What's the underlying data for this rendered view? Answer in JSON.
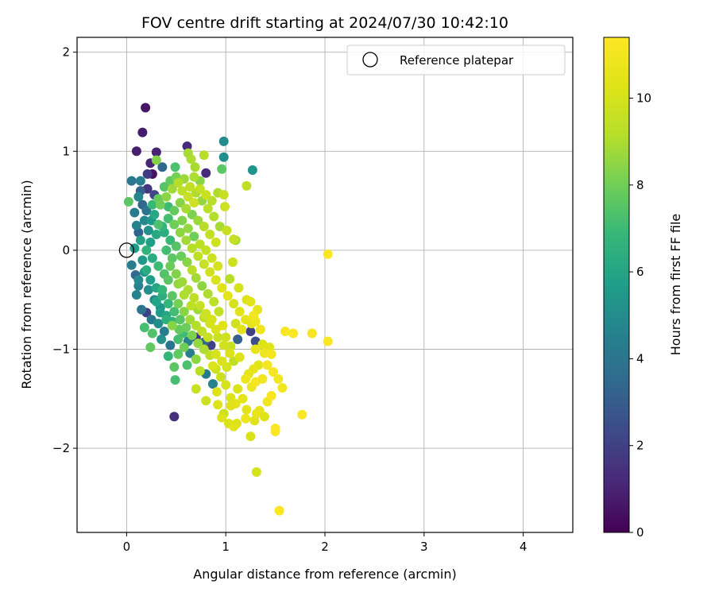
{
  "chart_data": {
    "type": "scatter",
    "title": "FOV centre drift starting at 2024/07/30 10:42:10",
    "xlabel": "Angular distance from reference (arcmin)",
    "ylabel": "Rotation from reference (arcmin)",
    "xlim": [
      -0.5,
      4.5
    ],
    "ylim": [
      -2.85,
      2.15
    ],
    "xticks": [
      0,
      1,
      2,
      3,
      4
    ],
    "xtick_labels": [
      "0",
      "1",
      "2",
      "3",
      "4"
    ],
    "yticks": [
      -2,
      -1,
      0,
      1,
      2
    ],
    "ytick_labels": [
      "−2",
      "−1",
      "0",
      "1",
      "2"
    ],
    "grid": true,
    "legend": {
      "position": "top-right",
      "entries": [
        {
          "label": "Reference platepar",
          "marker": "open-circle",
          "color": "#000000"
        }
      ]
    },
    "reference_point": {
      "x": 0,
      "y": 0
    },
    "colorbar": {
      "label": "Hours from first FF file",
      "range": [
        0,
        11.4
      ],
      "ticks": [
        0,
        2,
        4,
        6,
        8,
        10
      ],
      "tick_labels": [
        "0",
        "2",
        "4",
        "6",
        "8",
        "10"
      ],
      "colormap": "viridis"
    },
    "points": [
      [
        0.19,
        1.44,
        0.6
      ],
      [
        0.16,
        1.19,
        0.8
      ],
      [
        0.1,
        1.0,
        0.9
      ],
      [
        0.3,
        0.99,
        1.0
      ],
      [
        0.61,
        1.05,
        1.2
      ],
      [
        0.98,
        1.1,
        5.0
      ],
      [
        1.27,
        0.81,
        5.3
      ],
      [
        0.98,
        0.94,
        5.1
      ],
      [
        0.3,
        0.91,
        8.3
      ],
      [
        0.62,
        0.98,
        8.9
      ],
      [
        0.78,
        0.96,
        9.2
      ],
      [
        0.65,
        0.92,
        9.0
      ],
      [
        0.96,
        0.82,
        7.6
      ],
      [
        1.21,
        0.65,
        9.4
      ],
      [
        0.24,
        0.88,
        1.1
      ],
      [
        0.26,
        0.77,
        0.5
      ],
      [
        0.21,
        0.77,
        1.8
      ],
      [
        0.36,
        0.84,
        3.4
      ],
      [
        0.49,
        0.84,
        7.3
      ],
      [
        0.8,
        0.78,
        1.2
      ],
      [
        0.69,
        0.84,
        8.9
      ],
      [
        0.05,
        0.7,
        4.0
      ],
      [
        0.14,
        0.7,
        4.4
      ],
      [
        0.14,
        0.6,
        3.1
      ],
      [
        0.21,
        0.62,
        1.6
      ],
      [
        0.28,
        0.56,
        2.2
      ],
      [
        0.02,
        0.49,
        7.6
      ],
      [
        0.12,
        0.54,
        4.7
      ],
      [
        0.16,
        0.46,
        3.4
      ],
      [
        0.98,
        0.56,
        9.6
      ],
      [
        0.99,
        0.44,
        9.8
      ],
      [
        0.08,
        0.38,
        4.2
      ],
      [
        0.1,
        0.25,
        4.6
      ],
      [
        0.12,
        0.18,
        3.3
      ],
      [
        0.2,
        0.4,
        4.0
      ],
      [
        0.25,
        0.3,
        5.5
      ],
      [
        0.14,
        0.1,
        5.9
      ],
      [
        0.08,
        0.02,
        5.6
      ],
      [
        0.05,
        -0.15,
        4.4
      ],
      [
        0.09,
        -0.25,
        3.5
      ],
      [
        0.12,
        -0.3,
        4.9
      ],
      [
        0.2,
        -0.2,
        6.4
      ],
      [
        0.1,
        -0.45,
        4.6
      ],
      [
        0.15,
        -0.6,
        3.9
      ],
      [
        0.2,
        -0.63,
        2.0
      ],
      [
        0.18,
        -0.78,
        7.2
      ],
      [
        0.25,
        -0.7,
        4.1
      ],
      [
        0.24,
        -0.98,
        7.7
      ],
      [
        0.35,
        -0.9,
        5.2
      ],
      [
        0.42,
        -1.07,
        6.8
      ],
      [
        0.52,
        -1.05,
        7.7
      ],
      [
        0.48,
        -1.18,
        7.6
      ],
      [
        0.61,
        -1.16,
        7.3
      ],
      [
        0.49,
        -1.31,
        7.2
      ],
      [
        0.48,
        -1.68,
        1.4
      ],
      [
        0.7,
        -1.4,
        9.6
      ],
      [
        0.8,
        -1.25,
        4.1
      ],
      [
        0.87,
        -1.35,
        4.6
      ],
      [
        1.04,
        -0.29,
        9.2
      ],
      [
        1.07,
        -0.12,
        9.8
      ],
      [
        1.08,
        0.11,
        9.5
      ],
      [
        1.13,
        -0.38,
        10.0
      ],
      [
        1.21,
        -0.5,
        10.1
      ],
      [
        1.25,
        -0.52,
        10.4
      ],
      [
        1.32,
        -0.6,
        10.6
      ],
      [
        1.28,
        -0.66,
        10.9
      ],
      [
        1.26,
        -0.74,
        10.4
      ],
      [
        1.3,
        -0.72,
        10.7
      ],
      [
        1.35,
        -0.8,
        10.9
      ],
      [
        1.25,
        -0.82,
        2.0
      ],
      [
        1.3,
        -0.92,
        2.4
      ],
      [
        1.37,
        -0.95,
        10.2
      ],
      [
        1.44,
        -0.98,
        10.4
      ],
      [
        1.39,
        -1.04,
        10.8
      ],
      [
        1.46,
        -1.05,
        11.0
      ],
      [
        1.3,
        -1.0,
        10.6
      ],
      [
        1.42,
        -1.16,
        11.1
      ],
      [
        1.48,
        -1.23,
        11.1
      ],
      [
        1.53,
        -1.3,
        11.0
      ],
      [
        1.57,
        -1.39,
        11.0
      ],
      [
        1.46,
        -1.47,
        11.2
      ],
      [
        1.42,
        -1.53,
        10.9
      ],
      [
        1.5,
        -1.8,
        11.3
      ],
      [
        1.5,
        -1.83,
        11.3
      ],
      [
        1.25,
        -1.88,
        10.1
      ],
      [
        1.29,
        -1.72,
        10.3
      ],
      [
        1.31,
        -1.65,
        10.6
      ],
      [
        1.34,
        -1.62,
        10.4
      ],
      [
        1.39,
        -1.68,
        10.2
      ],
      [
        1.21,
        -1.61,
        10.4
      ],
      [
        1.2,
        -1.7,
        10.7
      ],
      [
        1.11,
        -1.75,
        10.2
      ],
      [
        1.08,
        -1.78,
        10.4
      ],
      [
        1.03,
        -1.75,
        10.1
      ],
      [
        0.98,
        -1.65,
        9.7
      ],
      [
        0.96,
        -1.69,
        10.2
      ],
      [
        0.92,
        -1.56,
        10.2
      ],
      [
        1.05,
        -1.57,
        10.3
      ],
      [
        1.1,
        -1.55,
        10.4
      ],
      [
        1.17,
        -1.5,
        10.5
      ],
      [
        1.05,
        -1.49,
        10.2
      ],
      [
        1.12,
        -1.4,
        10.1
      ],
      [
        1.2,
        -1.3,
        10.8
      ],
      [
        1.26,
        -1.38,
        10.7
      ],
      [
        1.23,
        -1.25,
        10.5
      ],
      [
        1.28,
        -1.2,
        10.6
      ],
      [
        1.33,
        -1.16,
        10.4
      ],
      [
        1.37,
        -1.3,
        10.9
      ],
      [
        1.3,
        -1.33,
        11.1
      ],
      [
        1.31,
        -2.24,
        10.0
      ],
      [
        1.54,
        -2.63,
        11.3
      ],
      [
        1.77,
        -1.66,
        11.3
      ],
      [
        1.6,
        -0.82,
        11.2
      ],
      [
        1.68,
        -0.84,
        11.3
      ],
      [
        1.87,
        -0.84,
        11.2
      ],
      [
        2.03,
        -0.92,
        11.3
      ],
      [
        2.03,
        -0.04,
        11.3
      ],
      [
        0.8,
        -1.52,
        9.8
      ],
      [
        0.7,
        -1.1,
        8.5
      ],
      [
        0.74,
        -1.22,
        9.2
      ],
      [
        0.91,
        -1.43,
        10.2
      ],
      [
        1.0,
        -1.36,
        10.0
      ],
      [
        0.95,
        -1.28,
        9.7
      ],
      [
        0.87,
        -1.17,
        10.2
      ],
      [
        0.9,
        -1.05,
        10.0
      ],
      [
        0.85,
        -0.96,
        2.0
      ],
      [
        0.78,
        -0.93,
        3.6
      ],
      [
        0.7,
        -0.88,
        1.5
      ],
      [
        0.62,
        -0.92,
        4.5
      ],
      [
        0.57,
        -0.84,
        7.0
      ],
      [
        0.53,
        -0.8,
        7.8
      ],
      [
        0.46,
        -0.76,
        8.4
      ],
      [
        0.4,
        -0.7,
        6.5
      ],
      [
        0.34,
        -0.63,
        5.6
      ],
      [
        0.3,
        -0.52,
        6.0
      ],
      [
        0.36,
        -0.4,
        6.8
      ],
      [
        0.42,
        -0.3,
        7.6
      ],
      [
        0.52,
        -0.34,
        8.6
      ],
      [
        0.58,
        -0.45,
        9.0
      ],
      [
        0.65,
        -0.56,
        9.3
      ],
      [
        0.72,
        -0.6,
        8.8
      ],
      [
        0.78,
        -0.68,
        9.5
      ],
      [
        0.84,
        -0.74,
        9.9
      ],
      [
        0.9,
        -0.8,
        10.1
      ],
      [
        0.97,
        -0.76,
        10.3
      ],
      [
        1.0,
        -0.88,
        9.8
      ],
      [
        1.05,
        -0.97,
        9.6
      ],
      [
        1.12,
        -0.9,
        3.2
      ],
      [
        1.14,
        -1.08,
        10.2
      ],
      [
        1.08,
        -1.12,
        9.4
      ],
      [
        1.01,
        -1.18,
        10.0
      ],
      [
        0.93,
        -0.62,
        9.5
      ],
      [
        0.88,
        -0.52,
        9.3
      ],
      [
        0.82,
        -0.44,
        9.0
      ],
      [
        0.76,
        -0.36,
        8.5
      ],
      [
        0.7,
        -0.28,
        8.8
      ],
      [
        0.66,
        -0.2,
        9.2
      ],
      [
        0.61,
        -0.12,
        8.4
      ],
      [
        0.55,
        -0.06,
        7.9
      ],
      [
        0.5,
        0.04,
        7.5
      ],
      [
        0.44,
        0.1,
        6.9
      ],
      [
        0.38,
        0.18,
        6.4
      ],
      [
        0.32,
        0.26,
        7.3
      ],
      [
        0.28,
        0.36,
        6.1
      ],
      [
        0.34,
        0.46,
        8.0
      ],
      [
        0.4,
        0.54,
        8.5
      ],
      [
        0.46,
        0.62,
        8.8
      ],
      [
        0.52,
        0.68,
        9.1
      ],
      [
        0.58,
        0.72,
        8.7
      ],
      [
        0.64,
        0.64,
        9.4
      ],
      [
        0.7,
        0.58,
        9.0
      ],
      [
        0.76,
        0.5,
        8.6
      ],
      [
        0.82,
        0.42,
        9.3
      ],
      [
        0.88,
        0.34,
        9.1
      ],
      [
        0.94,
        0.24,
        8.9
      ],
      [
        1.01,
        0.2,
        9.6
      ],
      [
        1.1,
        0.1,
        8.9
      ],
      [
        0.9,
        0.08,
        9.8
      ],
      [
        0.84,
        0.16,
        9.5
      ],
      [
        0.78,
        0.24,
        9.2
      ],
      [
        0.72,
        0.3,
        8.7
      ],
      [
        0.66,
        0.36,
        8.2
      ],
      [
        0.6,
        0.42,
        8.9
      ],
      [
        0.54,
        0.48,
        8.4
      ],
      [
        0.48,
        0.4,
        7.8
      ],
      [
        0.42,
        0.32,
        7.2
      ],
      [
        0.36,
        0.24,
        6.7
      ],
      [
        0.3,
        0.16,
        6.2
      ],
      [
        0.24,
        0.08,
        5.8
      ],
      [
        0.2,
        0.0,
        6.6
      ],
      [
        0.26,
        -0.08,
        6.3
      ],
      [
        0.32,
        -0.16,
        7.0
      ],
      [
        0.38,
        -0.24,
        7.4
      ],
      [
        0.44,
        -0.16,
        7.9
      ],
      [
        0.5,
        -0.24,
        8.3
      ],
      [
        0.56,
        -0.32,
        8.7
      ],
      [
        0.62,
        -0.4,
        9.0
      ],
      [
        0.68,
        -0.48,
        9.4
      ],
      [
        0.74,
        -0.56,
        9.6
      ],
      [
        0.8,
        -0.64,
        9.8
      ],
      [
        0.86,
        -0.7,
        10.0
      ],
      [
        0.92,
        -0.88,
        9.7
      ],
      [
        0.98,
        -0.96,
        9.9
      ],
      [
        1.04,
        -1.04,
        10.2
      ],
      [
        0.96,
        -1.12,
        10.1
      ],
      [
        0.9,
        -1.2,
        9.8
      ],
      [
        0.84,
        -1.06,
        9.4
      ],
      [
        0.78,
        -1.0,
        9.0
      ],
      [
        0.72,
        -0.94,
        8.6
      ],
      [
        0.66,
        -0.86,
        8.2
      ],
      [
        0.6,
        -0.78,
        7.9
      ],
      [
        0.54,
        -0.7,
        7.5
      ],
      [
        0.48,
        -0.62,
        7.1
      ],
      [
        0.42,
        -0.54,
        6.8
      ],
      [
        0.36,
        -0.46,
        6.4
      ],
      [
        0.3,
        -0.38,
        6.0
      ],
      [
        0.24,
        -0.3,
        5.7
      ],
      [
        0.18,
        -0.22,
        5.4
      ],
      [
        0.22,
        -0.4,
        5.1
      ],
      [
        0.28,
        -0.5,
        4.8
      ],
      [
        0.34,
        -0.58,
        5.3
      ],
      [
        0.4,
        -0.66,
        6.0
      ],
      [
        0.46,
        -0.72,
        6.6
      ],
      [
        0.52,
        -0.9,
        7.2
      ],
      [
        0.58,
        -0.98,
        8.0
      ],
      [
        0.64,
        -1.04,
        4.4
      ],
      [
        0.44,
        -0.96,
        3.9
      ],
      [
        0.38,
        -0.82,
        4.3
      ],
      [
        0.32,
        -0.74,
        5.0
      ],
      [
        0.26,
        -0.84,
        7.4
      ],
      [
        0.56,
        0.6,
        9.3
      ],
      [
        0.62,
        0.54,
        9.6
      ],
      [
        0.68,
        0.48,
        9.8
      ],
      [
        0.74,
        0.62,
        9.5
      ],
      [
        0.8,
        0.56,
        9.7
      ],
      [
        0.86,
        0.5,
        9.2
      ],
      [
        0.92,
        0.58,
        9.0
      ],
      [
        0.74,
        0.7,
        8.4
      ],
      [
        0.68,
        0.74,
        9.0
      ],
      [
        0.5,
        0.74,
        8.1
      ],
      [
        0.44,
        0.7,
        7.7
      ],
      [
        0.38,
        0.64,
        7.5
      ],
      [
        0.42,
        0.44,
        7.0
      ],
      [
        0.48,
        0.26,
        8.0
      ],
      [
        0.54,
        0.18,
        8.5
      ],
      [
        0.6,
        0.1,
        8.8
      ],
      [
        0.66,
        0.02,
        9.1
      ],
      [
        0.72,
        -0.06,
        9.4
      ],
      [
        0.78,
        -0.14,
        9.6
      ],
      [
        0.84,
        -0.22,
        9.9
      ],
      [
        0.9,
        -0.3,
        10.1
      ],
      [
        0.96,
        -0.38,
        10.3
      ],
      [
        1.02,
        -0.46,
        10.5
      ],
      [
        1.08,
        -0.54,
        10.0
      ],
      [
        1.14,
        -0.62,
        10.3
      ],
      [
        1.2,
        -0.7,
        10.5
      ],
      [
        1.16,
        -0.8,
        10.4
      ],
      [
        1.1,
        -0.74,
        9.9
      ],
      [
        0.56,
        0.3,
        8.2
      ],
      [
        0.62,
        0.22,
        8.6
      ],
      [
        0.68,
        0.14,
        8.0
      ],
      [
        0.74,
        0.06,
        9.3
      ],
      [
        0.8,
        0.0,
        9.5
      ],
      [
        0.86,
        -0.08,
        9.8
      ],
      [
        0.92,
        -0.16,
        10.0
      ],
      [
        0.46,
        -0.46,
        7.6
      ],
      [
        0.52,
        -0.54,
        8.1
      ],
      [
        0.58,
        -0.62,
        8.4
      ],
      [
        0.64,
        -0.7,
        8.8
      ],
      [
        0.7,
        -0.76,
        9.1
      ],
      [
        0.76,
        -0.82,
        9.4
      ],
      [
        0.82,
        -0.88,
        9.6
      ],
      [
        0.22,
        0.2,
        5.2
      ],
      [
        0.18,
        0.3,
        4.8
      ],
      [
        0.26,
        0.46,
        6.9
      ],
      [
        0.32,
        0.52,
        7.8
      ],
      [
        0.16,
        -0.1,
        5.5
      ],
      [
        0.12,
        -0.36,
        4.5
      ],
      [
        0.4,
        0.0,
        7.1
      ],
      [
        0.46,
        -0.08,
        7.6
      ]
    ]
  }
}
